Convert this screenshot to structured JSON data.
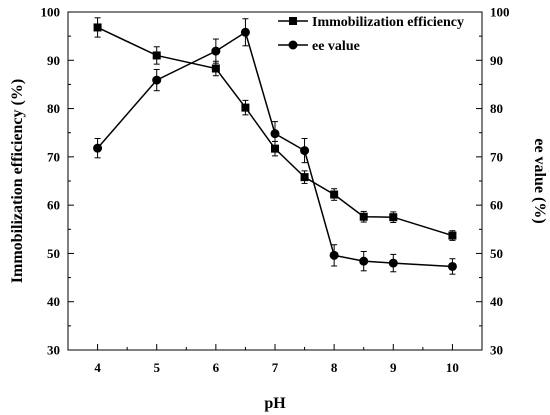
{
  "chart_data": {
    "type": "line",
    "x": [
      4,
      5,
      6,
      6.5,
      7,
      7.5,
      8,
      8.5,
      9,
      10
    ],
    "x_ticks": [
      "4",
      "5",
      "6",
      "7",
      "8",
      "9",
      "10"
    ],
    "y_ticks": [
      "30",
      "40",
      "50",
      "60",
      "70",
      "80",
      "90",
      "100"
    ],
    "xlim": [
      3.5,
      10.5
    ],
    "ylim": [
      30,
      100
    ],
    "xlabel": "pH",
    "ylabel_left": "Immobilization efficiency (%)",
    "ylabel_right": "ee value (%)",
    "grid": false,
    "legend_position": "top-right",
    "series": [
      {
        "name": "Immobilization efficiency",
        "marker": "square",
        "axis": "left",
        "values": [
          96.8,
          91.0,
          88.3,
          80.2,
          71.7,
          65.8,
          62.2,
          57.6,
          57.5,
          53.7
        ],
        "errors": [
          2.0,
          1.8,
          1.5,
          1.5,
          1.5,
          1.3,
          1.2,
          1.1,
          1.1,
          1.0
        ]
      },
      {
        "name": "ee value",
        "marker": "circle",
        "axis": "right",
        "values": [
          71.8,
          85.9,
          91.9,
          95.8,
          74.8,
          71.3,
          49.6,
          48.4,
          48.0,
          47.3
        ],
        "errors": [
          2.0,
          2.2,
          2.5,
          2.8,
          2.5,
          2.5,
          2.2,
          2.0,
          1.8,
          1.6
        ]
      }
    ],
    "colors": {
      "series": "#000000",
      "axis": "#000000"
    }
  }
}
